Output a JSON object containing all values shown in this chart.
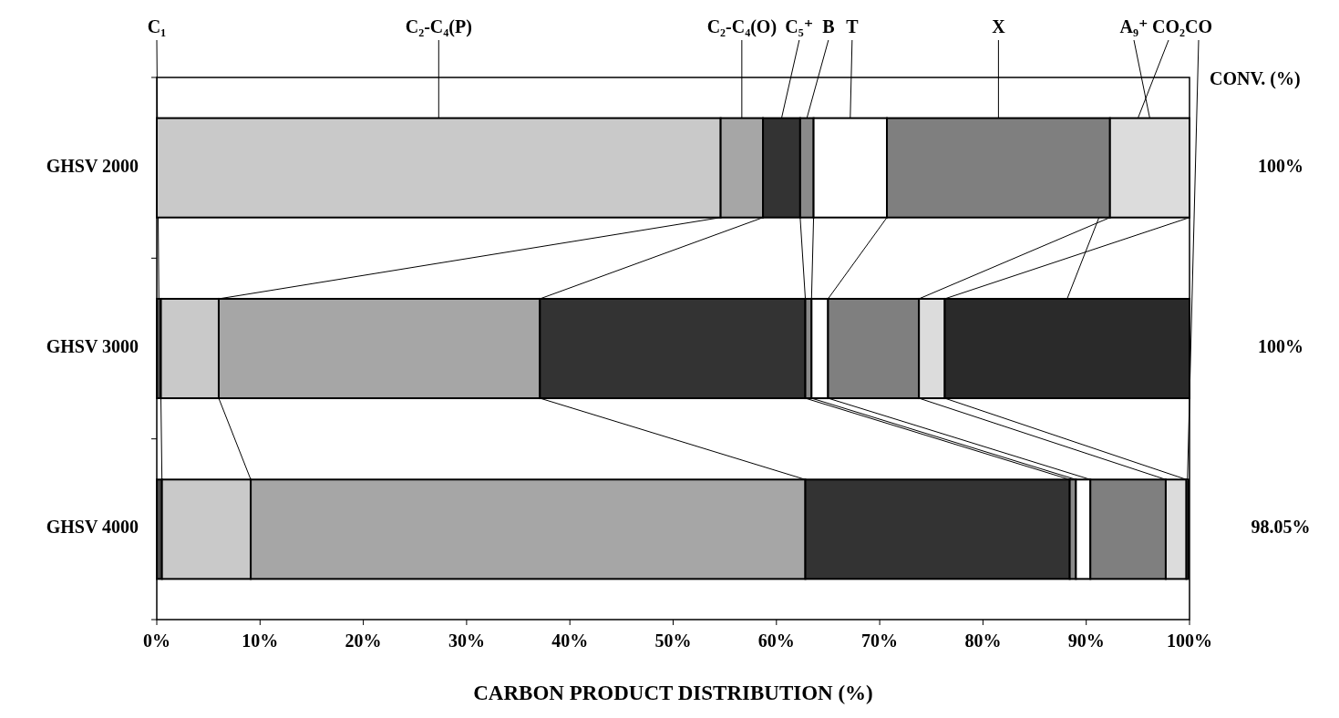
{
  "chart_data": {
    "type": "bar",
    "orientation": "horizontal",
    "stacked": true,
    "categories": [
      "GHSV 2000",
      "GHSV 3000",
      "GHSV 4000"
    ],
    "series": [
      {
        "name": "C₁",
        "color": "#4a4a4a",
        "values": [
          0,
          0.4,
          0.5
        ]
      },
      {
        "name": "C₂-C₄(P)",
        "color": "#c9c9c9",
        "values": [
          54.6,
          5.6,
          8.6
        ]
      },
      {
        "name": "C₂-C₄(O)",
        "color": "#a6a6a6",
        "values": [
          4.1,
          31.1,
          53.7
        ]
      },
      {
        "name": "C₅⁺",
        "color": "#333333",
        "values": [
          3.6,
          25.7,
          25.6
        ]
      },
      {
        "name": "B",
        "color": "#8a8a8a",
        "values": [
          1.3,
          0.6,
          0.6
        ]
      },
      {
        "name": "T",
        "color": "#ffffff",
        "values": [
          7.1,
          1.6,
          1.4
        ]
      },
      {
        "name": "X",
        "color": "#7f7f7f",
        "values": [
          21.6,
          8.8,
          7.3
        ]
      },
      {
        "name": "A₉⁺",
        "color": "#dcdcdc",
        "values": [
          7.7,
          2.5,
          2.0
        ]
      },
      {
        "name": "CO₂",
        "color": "#2a2a2a",
        "values": [
          0,
          23.7,
          null
        ]
      },
      {
        "name": "CO",
        "color": "#606060",
        "values": [
          0,
          0,
          0.2
        ]
      }
    ],
    "xlim": [
      0,
      100
    ],
    "xticks": [
      {
        "value": 0,
        "label": "0%"
      },
      {
        "value": 10,
        "label": "10%"
      },
      {
        "value": 20,
        "label": "20%"
      },
      {
        "value": 30,
        "label": "30%"
      },
      {
        "value": 40,
        "label": "40%"
      },
      {
        "value": 50,
        "label": "50%"
      },
      {
        "value": 60,
        "label": "60%"
      },
      {
        "value": 70,
        "label": "70%"
      },
      {
        "value": 80,
        "label": "80%"
      },
      {
        "value": 90,
        "label": "90%"
      },
      {
        "value": 100,
        "label": "100%"
      }
    ],
    "xlabel": "CARBON PRODUCT DISTRIBUTION (%)",
    "annotations": [
      "CONV. (%)",
      "100%",
      "100%",
      "98.05%"
    ],
    "legend": false,
    "grid": false
  }
}
